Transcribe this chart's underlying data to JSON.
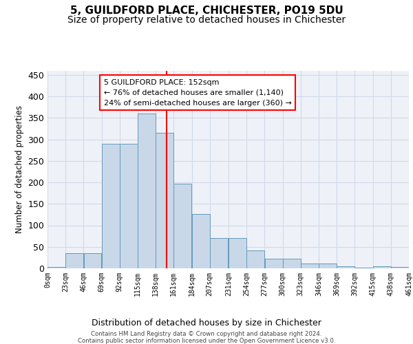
{
  "title": "5, GUILDFORD PLACE, CHICHESTER, PO19 5DU",
  "subtitle": "Size of property relative to detached houses in Chichester",
  "xlabel": "Distribution of detached houses by size in Chichester",
  "ylabel": "Number of detached properties",
  "bar_values": [
    4,
    35,
    35,
    290,
    290,
    360,
    315,
    197,
    127,
    71,
    71,
    42,
    22,
    22,
    11,
    11,
    5,
    2,
    5,
    3
  ],
  "bin_edges": [
    0,
    23,
    46,
    69,
    92,
    115,
    138,
    161,
    184,
    207,
    231,
    254,
    277,
    300,
    323,
    346,
    369,
    392,
    415,
    438,
    461
  ],
  "tick_labels": [
    "0sqm",
    "23sqm",
    "46sqm",
    "69sqm",
    "92sqm",
    "115sqm",
    "138sqm",
    "161sqm",
    "184sqm",
    "207sqm",
    "231sqm",
    "254sqm",
    "277sqm",
    "300sqm",
    "323sqm",
    "346sqm",
    "369sqm",
    "392sqm",
    "415sqm",
    "438sqm",
    "461sqm"
  ],
  "bar_color": "#c8d8e8",
  "bar_edge_color": "#6699bb",
  "grid_color": "#d0d8e8",
  "background_color": "#eef2f8",
  "vline_x": 152,
  "vline_color": "red",
  "annotation_text": "5 GUILDFORD PLACE: 152sqm\n← 76% of detached houses are smaller (1,140)\n24% of semi-detached houses are larger (360) →",
  "annotation_box_color": "white",
  "annotation_box_edge": "red",
  "footer_line1": "Contains HM Land Registry data © Crown copyright and database right 2024.",
  "footer_line2": "Contains public sector information licensed under the Open Government Licence v3.0.",
  "ylim": [
    0,
    460
  ],
  "yticks": [
    0,
    50,
    100,
    150,
    200,
    250,
    300,
    350,
    400,
    450
  ],
  "title_fontsize": 11,
  "subtitle_fontsize": 10
}
